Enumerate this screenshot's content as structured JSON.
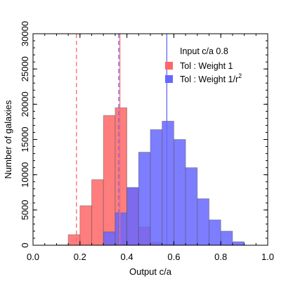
{
  "chart_data": {
    "type": "bar",
    "xlabel": "Output c/a",
    "ylabel": "Number of galaxies",
    "xlim": [
      0.0,
      1.0
    ],
    "ylim": [
      0,
      30000
    ],
    "xticks": [
      0.0,
      0.2,
      0.4,
      0.6,
      0.8,
      1.0
    ],
    "xtick_labels": [
      "0.0",
      "0.2",
      "0.4",
      "0.6",
      "0.8",
      "1.0"
    ],
    "yticks": [
      0,
      5000,
      10000,
      15000,
      20000,
      25000,
      30000
    ],
    "ytick_labels": [
      "0",
      "5000",
      "10000",
      "15000",
      "20000",
      "25000",
      "30000"
    ],
    "bin_width": 0.05,
    "bin_starts": [
      0.1,
      0.15,
      0.2,
      0.25,
      0.3,
      0.35,
      0.4,
      0.45,
      0.5,
      0.55,
      0.6,
      0.65,
      0.7,
      0.75,
      0.8,
      0.85
    ],
    "legend_title": "Input c/a 0.8",
    "legend_position": "top-right",
    "series": [
      {
        "name": "Tol : Weight 1",
        "color": "#ff6666",
        "values": [
          50,
          1500,
          5600,
          9300,
          18400,
          19500,
          8100,
          2600,
          400,
          100,
          0,
          0,
          0,
          0,
          0,
          0
        ],
        "median_line": 0.37,
        "bound_line": 0.185
      },
      {
        "name_prefix": "Tol : Weight 1/r",
        "name_superscript": "2",
        "color": "#6666ff",
        "values": [
          0,
          0,
          0,
          0,
          1900,
          4600,
          8200,
          13200,
          16400,
          17600,
          15000,
          11000,
          6600,
          3600,
          2000,
          500
        ],
        "median_line": 0.57,
        "bound_line": 0.365
      }
    ]
  }
}
